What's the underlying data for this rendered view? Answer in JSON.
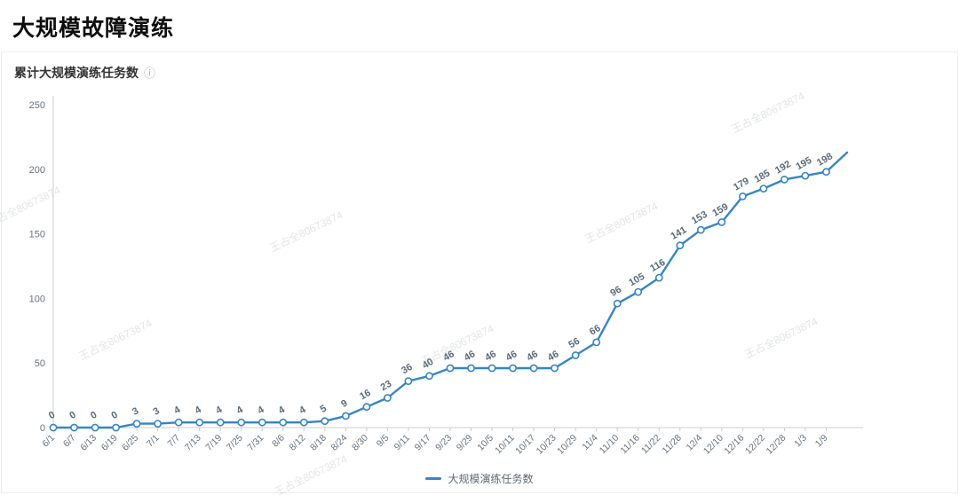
{
  "page": {
    "title": "大规模故障演练"
  },
  "panel": {
    "title": "累计大规模演练任务数",
    "info_icon": "ⓘ"
  },
  "legend": {
    "label": "大规模演练任务数"
  },
  "watermark": {
    "text": "王占全80673874"
  },
  "chart_data": {
    "type": "line",
    "title": "累计大规模演练任务数",
    "legend_entries": [
      "大规模演练任务数"
    ],
    "legend_position": "bottom",
    "grid": false,
    "x": [
      "6/1",
      "6/7",
      "6/13",
      "6/19",
      "6/25",
      "7/1",
      "7/7",
      "7/13",
      "7/19",
      "7/25",
      "7/31",
      "8/6",
      "8/12",
      "8/18",
      "8/24",
      "8/30",
      "9/5",
      "9/11",
      "9/17",
      "9/23",
      "9/29",
      "10/5",
      "10/11",
      "10/17",
      "10/23",
      "10/29",
      "11/4",
      "11/10",
      "11/16",
      "11/22",
      "11/28",
      "12/4",
      "12/10",
      "12/16",
      "12/22",
      "12/28",
      "1/3",
      "1/9"
    ],
    "values": [
      0,
      0,
      0,
      0,
      3,
      3,
      4,
      4,
      4,
      4,
      4,
      4,
      4,
      5,
      9,
      16,
      23,
      36,
      40,
      46,
      46,
      46,
      46,
      46,
      46,
      56,
      66,
      96,
      105,
      116,
      141,
      153,
      159,
      179,
      185,
      192,
      195,
      198
    ],
    "trailing_value": 213,
    "xlabel": "",
    "ylabel": "",
    "ylim": [
      0,
      250
    ],
    "yticks": [
      0,
      50,
      100,
      150,
      200,
      250
    ],
    "line_color": "#3585c6",
    "marker": "hollow-circle",
    "label_rotation": -30,
    "xtick_rotation": -45
  }
}
